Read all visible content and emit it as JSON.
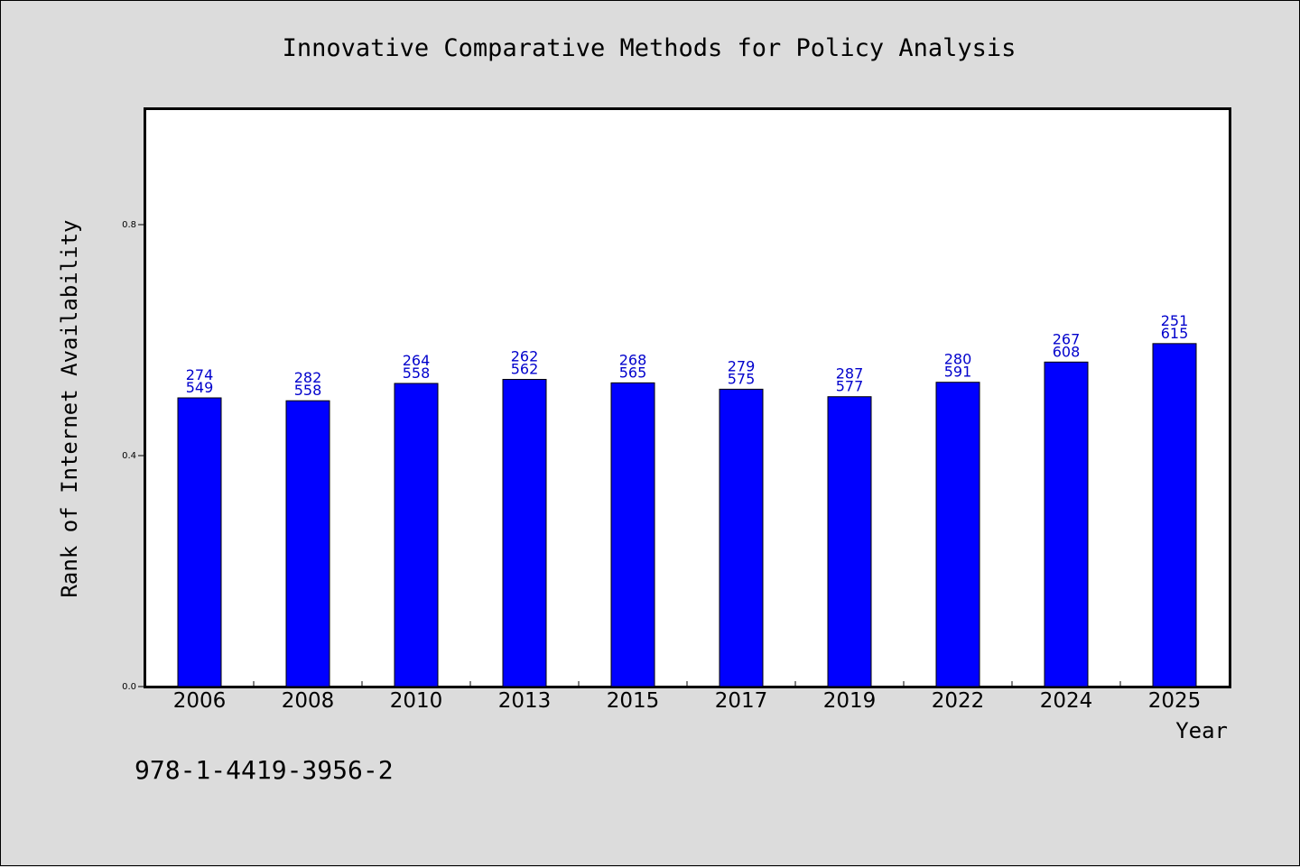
{
  "chart_data": {
    "type": "bar",
    "title": "Innovative Comparative Methods for Policy Analysis",
    "xlabel": "Year",
    "ylabel": "Rank of Internet Availability",
    "categories": [
      "2006",
      "2008",
      "2010",
      "2013",
      "2015",
      "2017",
      "2019",
      "2022",
      "2024",
      "2025"
    ],
    "values": [
      0.5,
      0.495,
      0.525,
      0.532,
      0.526,
      0.515,
      0.502,
      0.527,
      0.562,
      0.594
    ],
    "bar_labels_top": [
      "274",
      "282",
      "264",
      "262",
      "268",
      "279",
      "287",
      "280",
      "267",
      "251"
    ],
    "bar_labels_bottom": [
      "549",
      "558",
      "558",
      "562",
      "565",
      "575",
      "577",
      "591",
      "608",
      "615"
    ],
    "yticks": [
      "0.0",
      "0.4",
      "0.8"
    ],
    "ylim": [
      0,
      1.0
    ],
    "grid": false,
    "legend": "none",
    "bar_color": "#0000ff",
    "label_color": "#0000cc"
  },
  "footer_text": "978-1-4419-3956-2"
}
